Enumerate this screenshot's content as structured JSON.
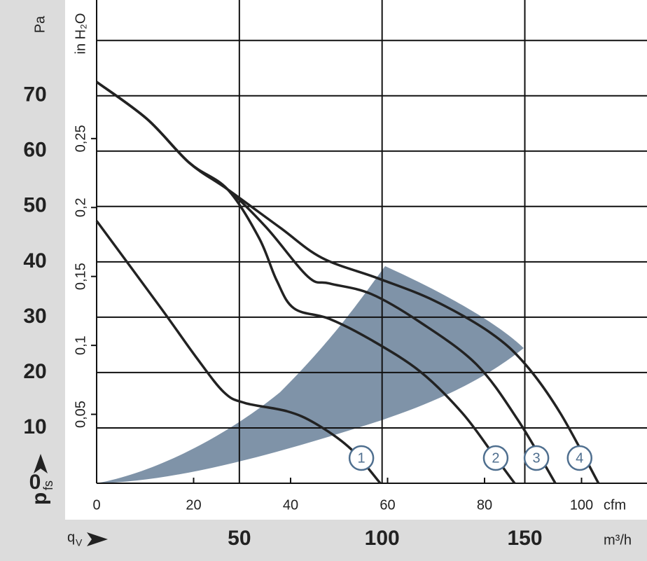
{
  "chart_data": {
    "type": "line",
    "x_unit": "cfm",
    "x2_unit": "m³/h",
    "y_unit": "Pa",
    "y2_unit": "in H₂O",
    "x_symbol": "q",
    "x_symbol_sub": "V",
    "y_symbol": "p",
    "y_symbol_sub": "fs",
    "xlim": [
      0,
      113.5
    ],
    "xticks": [
      0,
      20,
      40,
      60,
      80,
      100
    ],
    "x2lim": [
      0,
      192.8
    ],
    "x2ticks": [
      50,
      100,
      150
    ],
    "ylim": [
      0,
      87.3
    ],
    "yticks": [
      0,
      10,
      20,
      30,
      40,
      50,
      60,
      70
    ],
    "ygrid": [
      10,
      20,
      30,
      40,
      50,
      60,
      70,
      80
    ],
    "y2lim": [
      0,
      0.3505
    ],
    "y2ticks": [
      {
        "value": 0.05,
        "label": "0,05"
      },
      {
        "value": 0.1,
        "label": "0,1"
      },
      {
        "value": 0.15,
        "label": "0,15"
      },
      {
        "value": 0.2,
        "label": "0,2"
      },
      {
        "value": 0.25,
        "label": "0,25"
      }
    ],
    "grid": true,
    "label_color": "#4f6f8f",
    "series": [
      {
        "name": "1",
        "color": "#222222",
        "x": [
          0,
          13.3,
          20.5,
          26.3,
          30.6,
          39.3,
          45.1,
          52.3,
          58.5
        ],
        "values": [
          47.4,
          31.6,
          22.8,
          16.4,
          14.5,
          13.0,
          10.8,
          6.3,
          0
        ]
      },
      {
        "name": "2",
        "color": "#222222",
        "x": [
          0,
          10.4,
          19.1,
          27.0,
          33.5,
          37.1,
          40.7,
          48.0,
          56.6,
          66.7,
          75.4,
          81.9,
          86.2
        ],
        "values": [
          72.5,
          65.8,
          57.9,
          53.1,
          44.3,
          36.7,
          31.6,
          29.7,
          25.9,
          20.2,
          12.7,
          5.1,
          0
        ]
      },
      {
        "name": "3",
        "color": "#222222",
        "x": [
          0,
          10.4,
          19.1,
          27.0,
          35.0,
          43.6,
          48.0,
          56.6,
          66.7,
          78.3,
          86.9,
          94.6
        ],
        "values": [
          72.5,
          65.8,
          57.9,
          53.1,
          46.2,
          37.3,
          36.1,
          34.2,
          29.1,
          21.5,
          11.4,
          0
        ]
      },
      {
        "name": "4",
        "color": "#222222",
        "x": [
          0,
          10.4,
          19.1,
          27.0,
          37.8,
          46.5,
          58.1,
          69.6,
          81.2,
          88.4,
          95.6,
          103.5
        ],
        "values": [
          72.5,
          65.8,
          57.9,
          53.1,
          46.2,
          40.7,
          37.0,
          33.0,
          27.2,
          21.5,
          12.7,
          0
        ]
      }
    ]
  }
}
